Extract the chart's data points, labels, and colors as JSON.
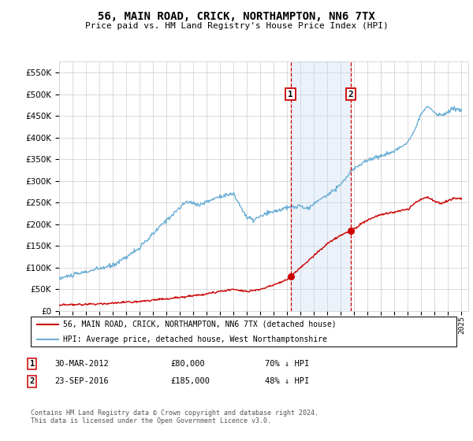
{
  "title": "56, MAIN ROAD, CRICK, NORTHAMPTON, NN6 7TX",
  "subtitle": "Price paid vs. HM Land Registry's House Price Index (HPI)",
  "legend_line1": "56, MAIN ROAD, CRICK, NORTHAMPTON, NN6 7TX (detached house)",
  "legend_line2": "HPI: Average price, detached house, West Northamptonshire",
  "footer": "Contains HM Land Registry data © Crown copyright and database right 2024.\nThis data is licensed under the Open Government Licence v3.0.",
  "sale1_date": "30-MAR-2012",
  "sale1_price": 80000,
  "sale1_label": "70% ↓ HPI",
  "sale2_date": "23-SEP-2016",
  "sale2_price": 185000,
  "sale2_label": "48% ↓ HPI",
  "sale1_x": 2012.25,
  "sale2_x": 2016.73,
  "ylim": [
    0,
    575000
  ],
  "yticks": [
    0,
    50000,
    100000,
    150000,
    200000,
    250000,
    300000,
    350000,
    400000,
    450000,
    500000,
    550000
  ],
  "hpi_color": "#6baed6",
  "price_color": "#cc0000",
  "grid_color": "#cccccc",
  "shade_color": "#c6dbef",
  "vline_color": "#cc0000",
  "xlim_left": 1995,
  "xlim_right": 2025.5
}
